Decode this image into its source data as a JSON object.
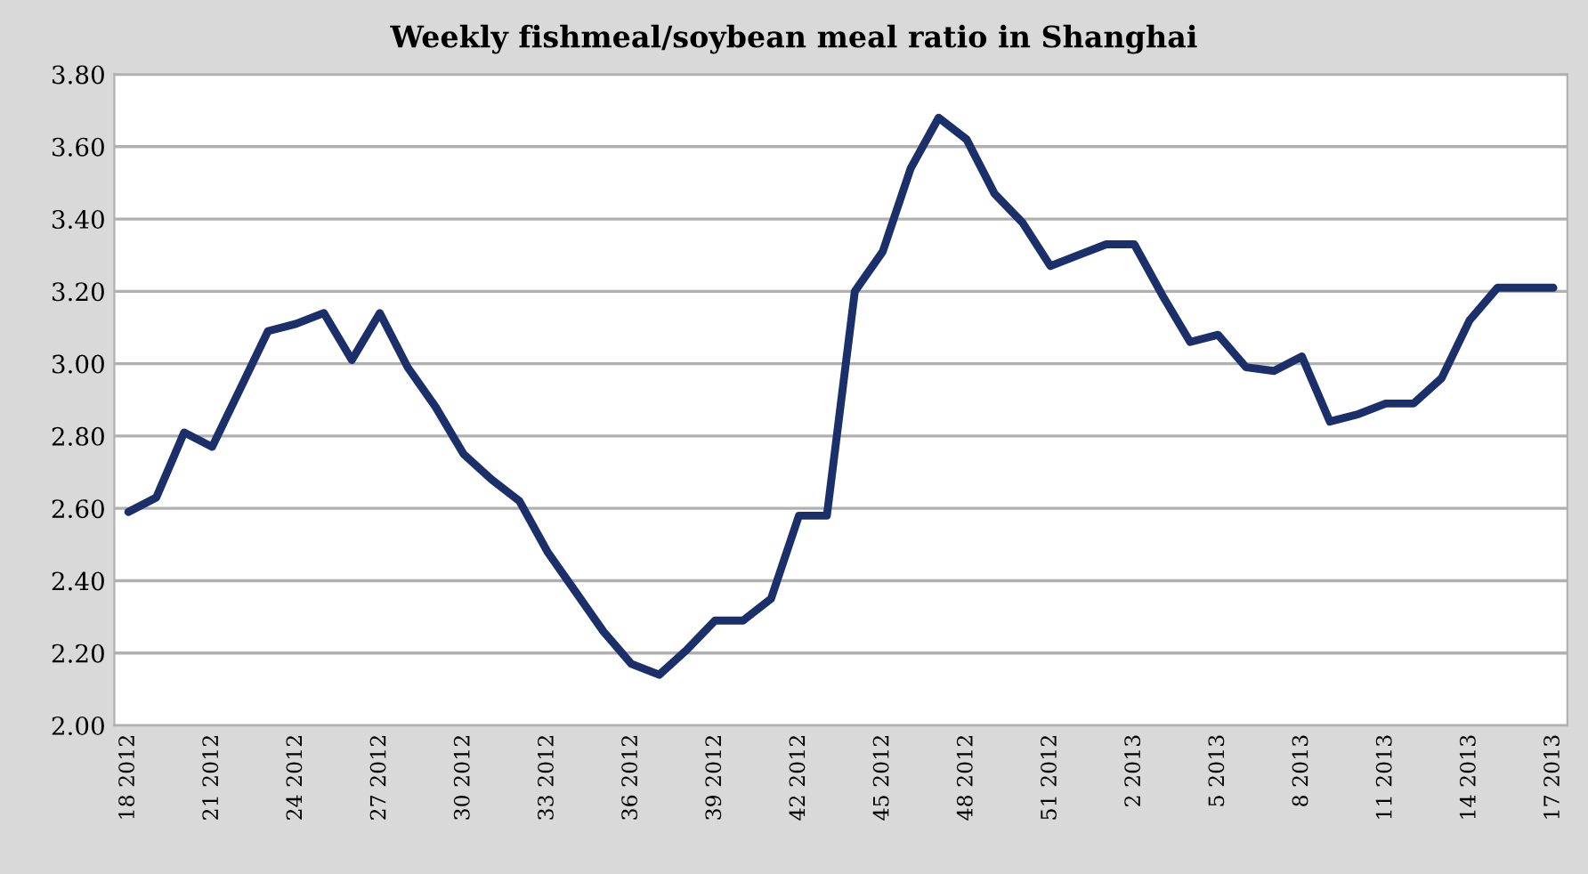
{
  "chart_data": {
    "type": "line",
    "title": "Weekly fishmeal/soybean meal ratio in Shanghai",
    "categories": [
      "18 2012",
      null,
      null,
      "21 2012",
      null,
      null,
      "24 2012",
      null,
      null,
      "27 2012",
      null,
      null,
      "30 2012",
      null,
      null,
      "33 2012",
      null,
      null,
      "36 2012",
      null,
      null,
      "39 2012",
      null,
      null,
      "42 2012",
      null,
      null,
      "45 2012",
      null,
      null,
      "48 2012",
      null,
      null,
      "51 2012",
      null,
      null,
      "2 2013",
      null,
      null,
      "5 2013",
      null,
      null,
      "8 2013",
      null,
      null,
      "11 2013",
      null,
      null,
      "14 2013",
      null,
      null,
      "17 2013"
    ],
    "series": [
      {
        "color": "#1b2f6b",
        "values": [
          2.59,
          2.63,
          2.81,
          2.77,
          2.93,
          3.09,
          3.11,
          3.14,
          3.01,
          3.14,
          2.99,
          2.88,
          2.75,
          2.68,
          2.62,
          2.48,
          2.37,
          2.26,
          2.17,
          2.14,
          2.21,
          2.29,
          2.29,
          2.35,
          2.58,
          2.58,
          3.2,
          3.31,
          3.54,
          3.68,
          3.62,
          3.47,
          3.39,
          3.27,
          3.3,
          3.33,
          3.33,
          3.19,
          3.06,
          3.08,
          2.99,
          2.98,
          3.02,
          2.84,
          2.86,
          2.89,
          2.89,
          2.96,
          3.12,
          3.21,
          3.21,
          3.21
        ]
      }
    ],
    "ylim": [
      2.0,
      3.8
    ],
    "yticks": [
      {
        "value": 2.0,
        "label": "2.00"
      },
      {
        "value": 2.2,
        "label": "2.20"
      },
      {
        "value": 2.4,
        "label": "2.40"
      },
      {
        "value": 2.6,
        "label": "2.60"
      },
      {
        "value": 2.8,
        "label": "2.80"
      },
      {
        "value": 3.0,
        "label": "3.00"
      },
      {
        "value": 3.2,
        "label": "3.20"
      },
      {
        "value": 3.4,
        "label": "3.40"
      },
      {
        "value": 3.6,
        "label": "3.60"
      },
      {
        "value": 3.8,
        "label": "3.80"
      }
    ],
    "grid": "y",
    "legend": false,
    "marker": "none",
    "line_style": "solid"
  }
}
